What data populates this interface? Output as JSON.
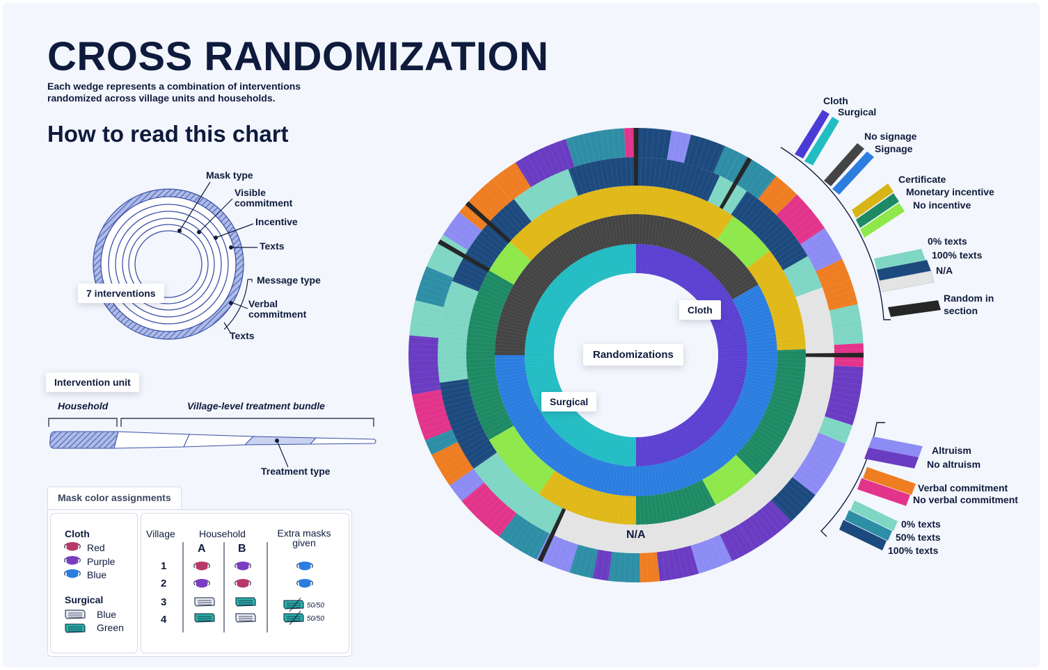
{
  "title": "CROSS RANDOMIZATION",
  "subtitle": "Each wedge represents a combination of interventions randomized across village units and households.",
  "how_to_read": {
    "heading": "How to read this chart",
    "ring_labels": {
      "mask_type": "Mask type",
      "visible_commitment": "Visible commitment",
      "incentive": "Incentive",
      "texts_top": "Texts",
      "message_type": "Message type",
      "verbal_commitment": "Verbal commitment",
      "texts_bottom": "Texts"
    },
    "interventions_chip": "7 interventions",
    "intervention_unit_chip": "Intervention unit",
    "household_label": "Household",
    "village_label": "Village-level treatment bundle",
    "treatment_type_label": "Treatment type"
  },
  "mask_assignments": {
    "tab_label": "Mask color assignments",
    "cloth_heading": "Cloth",
    "cloth_colors": [
      "Red",
      "Purple",
      "Blue"
    ],
    "surgical_heading": "Surgical",
    "surgical_colors": [
      "Blue",
      "Green"
    ],
    "col_village": "Village",
    "col_household": "Household",
    "col_a": "A",
    "col_b": "B",
    "col_extra": "Extra masks given",
    "villages": [
      "1",
      "2",
      "3",
      "4"
    ],
    "fifty_fifty": "50/50"
  },
  "chart": {
    "center_label": "Randomizations",
    "cloth_label": "Cloth",
    "surgical_label": "Surgical",
    "na_label": "N/A"
  },
  "legend_top": {
    "mask": [
      "Cloth",
      "Surgical"
    ],
    "signage": [
      "No signage",
      "Signage"
    ],
    "incentive": [
      "Certificate",
      "Monetary incentive",
      "No incentive"
    ],
    "texts": [
      "0% texts",
      "100% texts",
      "N/A"
    ],
    "random": "Random in section"
  },
  "legend_bottom": {
    "message": [
      "Altruism",
      "No altruism"
    ],
    "verbal": [
      "Verbal commitment",
      "No verbal commitment"
    ],
    "texts": [
      "0% texts",
      "50% texts",
      "100% texts"
    ]
  },
  "colors": {
    "navy": "#0f1b3d",
    "cloth": "#5a3fd1",
    "surgical": "#22bcc3",
    "no_signage": "#444444",
    "signage": "#2b7de0",
    "certificate": "#e0b818",
    "monetary": "#1e8a64",
    "no_incentive": "#8ee84a",
    "texts_0": "#7fd6c4",
    "texts_100": "#1d4a7e",
    "na": "#e4e4e4",
    "random": "#262626",
    "altruism": "#8c8cf4",
    "no_altruism": "#6a3cc2",
    "verbal": "#ef7d22",
    "no_verbal": "#e2348a",
    "texts_50": "#2e8ea6"
  }
}
